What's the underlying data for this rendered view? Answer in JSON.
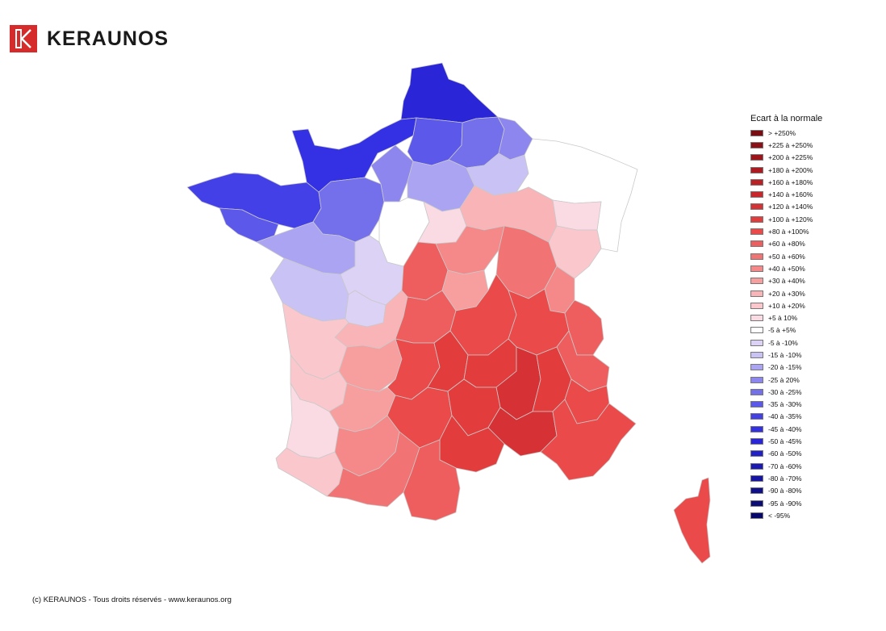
{
  "brand": {
    "name": "KERAUNOS"
  },
  "legend": {
    "title": "Ecart à la normale",
    "items": [
      {
        "label": "> +250%",
        "color": "#7a0d12"
      },
      {
        "label": "+225 à +250%",
        "color": "#8c1016"
      },
      {
        "label": "+200 à +225%",
        "color": "#9e141b"
      },
      {
        "label": "+180 à +200%",
        "color": "#ad1a20"
      },
      {
        "label": "+160 à +180%",
        "color": "#bc2025"
      },
      {
        "label": "+140 à +160%",
        "color": "#c8282c"
      },
      {
        "label": "+120 à +140%",
        "color": "#d63134"
      },
      {
        "label": "+100 à +120%",
        "color": "#e33c3d"
      },
      {
        "label": "+80 à +100%",
        "color": "#ea4a4a"
      },
      {
        "label": "+60 à +80%",
        "color": "#ee5e5e"
      },
      {
        "label": "+50 à +60%",
        "color": "#f27373"
      },
      {
        "label": "+40 à +50%",
        "color": "#f58888"
      },
      {
        "label": "+30 à +40%",
        "color": "#f79e9f"
      },
      {
        "label": "+20 à +30%",
        "color": "#f9b4b8"
      },
      {
        "label": "+10 à +20%",
        "color": "#fac7cd"
      },
      {
        "label": "+5 à 10%",
        "color": "#fbdbe3"
      },
      {
        "label": "-5 à +5%",
        "color": "#ffffff"
      },
      {
        "label": "-5 à -10%",
        "color": "#dcd2f6"
      },
      {
        "label": "-15 à -10%",
        "color": "#c8c2f5"
      },
      {
        "label": "-20 à -15%",
        "color": "#aaa4f2"
      },
      {
        "label": "-25 à 20%",
        "color": "#8c86ee"
      },
      {
        "label": "-30 à -25%",
        "color": "#7470ec"
      },
      {
        "label": "-35 à -30%",
        "color": "#5c58ea"
      },
      {
        "label": "-40 à -35%",
        "color": "#4440e8"
      },
      {
        "label": "-45 à -40%",
        "color": "#3430e4"
      },
      {
        "label": "-50 à -45%",
        "color": "#2a26d8"
      },
      {
        "label": "-60 à -50%",
        "color": "#2220c8"
      },
      {
        "label": "-70 à -60%",
        "color": "#1c1ab6"
      },
      {
        "label": "-80 à -70%",
        "color": "#1614a2"
      },
      {
        "label": "-90 à -80%",
        "color": "#10108c"
      },
      {
        "label": "-95 à -90%",
        "color": "#0c0c78"
      },
      {
        "label": "< -95%",
        "color": "#08086a"
      }
    ]
  },
  "map": {
    "regions": [
      {
        "id": "nord",
        "color": "#2a26d8"
      },
      {
        "id": "normandie",
        "color": "#3430e4"
      },
      {
        "id": "bretagne",
        "color": "#4440e8"
      },
      {
        "id": "bretagne-sud",
        "color": "#5c58ea"
      },
      {
        "id": "pays-loire",
        "color": "#7470ec"
      },
      {
        "id": "centre-ouest",
        "color": "#8c86ee"
      },
      {
        "id": "picardie",
        "color": "#5c58ea"
      },
      {
        "id": "aisne",
        "color": "#7470ec"
      },
      {
        "id": "ardennes",
        "color": "#8c86ee"
      },
      {
        "id": "idf",
        "color": "#aaa4f2"
      },
      {
        "id": "marne",
        "color": "#c8c2f5"
      },
      {
        "id": "vendee",
        "color": "#aaa4f2"
      },
      {
        "id": "poitou",
        "color": "#c8c2f5"
      },
      {
        "id": "charente-nord",
        "color": "#dcd2f6"
      },
      {
        "id": "cher-indre",
        "color": "#dcd2f6"
      },
      {
        "id": "grand-est",
        "color": "#ffffff"
      },
      {
        "id": "loiret",
        "color": "#ffffff"
      },
      {
        "id": "yonne",
        "color": "#fbdbe3"
      },
      {
        "id": "haute-saone",
        "color": "#fbdbe3"
      },
      {
        "id": "aquitaine-cote",
        "color": "#fbdbe3"
      },
      {
        "id": "gironde",
        "color": "#fac7cd"
      },
      {
        "id": "charente",
        "color": "#fac7cd"
      },
      {
        "id": "bourgogne",
        "color": "#f9b4b8"
      },
      {
        "id": "franche-comte",
        "color": "#fac7cd"
      },
      {
        "id": "limousin-ouest",
        "color": "#f9b4b8"
      },
      {
        "id": "dordogne",
        "color": "#f79e9f"
      },
      {
        "id": "lot-garonne",
        "color": "#f79e9f"
      },
      {
        "id": "landes-sud",
        "color": "#fac7cd"
      },
      {
        "id": "creuse",
        "color": "#f79e9f"
      },
      {
        "id": "nievre",
        "color": "#f58888"
      },
      {
        "id": "saone-loire",
        "color": "#f27373"
      },
      {
        "id": "ain",
        "color": "#f58888"
      },
      {
        "id": "savoie",
        "color": "#ee5e5e"
      },
      {
        "id": "correze",
        "color": "#ee5e5e"
      },
      {
        "id": "allier",
        "color": "#ee5e5e"
      },
      {
        "id": "rhone",
        "color": "#ea4a4a"
      },
      {
        "id": "puy-dome",
        "color": "#ea4a4a"
      },
      {
        "id": "gers",
        "color": "#f58888"
      },
      {
        "id": "pyrenees",
        "color": "#f27373"
      },
      {
        "id": "ariege",
        "color": "#ee5e5e"
      },
      {
        "id": "aveyron",
        "color": "#ea4a4a"
      },
      {
        "id": "lozere",
        "color": "#e33c3d"
      },
      {
        "id": "ardeche",
        "color": "#d63134"
      },
      {
        "id": "drome",
        "color": "#e33c3d"
      },
      {
        "id": "herault",
        "color": "#e33c3d"
      },
      {
        "id": "gard",
        "color": "#d63134"
      },
      {
        "id": "provence",
        "color": "#ea4a4a"
      },
      {
        "id": "alpes",
        "color": "#ee5e5e"
      },
      {
        "id": "alpes-sud",
        "color": "#ea4a4a"
      },
      {
        "id": "corse",
        "color": "#ea4a4a"
      }
    ]
  },
  "footer": {
    "copyright": "(c) KERAUNOS - Tous droits réservés - www.keraunos.org"
  }
}
